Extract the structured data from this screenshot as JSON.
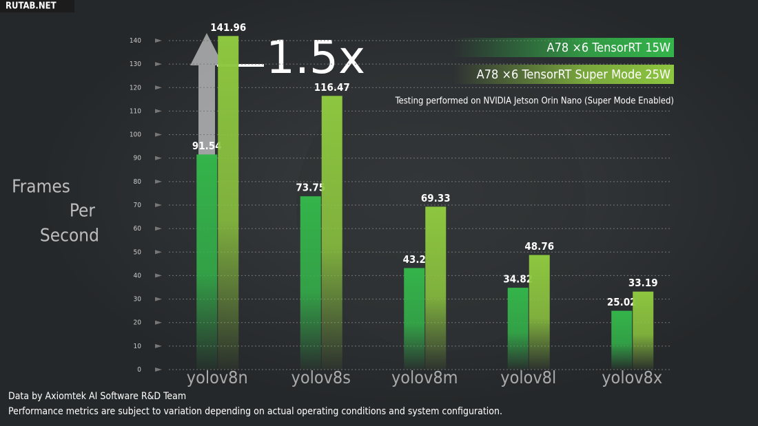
{
  "watermark": "RUTAB.NET",
  "chart_data": {
    "type": "bar",
    "subtitle": "Testing performed on NVIDIA Jetson Orin Nano (Super Mode Enabled)",
    "y_label": [
      "Frames",
      "Per",
      "Second"
    ],
    "annotation": "1.5x",
    "categories": [
      "yolov8n",
      "yolov8s",
      "yolov8m",
      "yolov8l",
      "yolov8x"
    ],
    "series": [
      {
        "name": "A78 ×6 TensorRT 15W",
        "color": "#34b44a",
        "values": [
          91.54,
          73.75,
          43.2,
          34.82,
          25.02
        ]
      },
      {
        "name": "A78 ×6 TensorRT Super Mode 25W",
        "color": "#8dc63f",
        "values": [
          141.96,
          116.47,
          69.33,
          48.76,
          33.19
        ]
      }
    ],
    "ylim": [
      0,
      140
    ],
    "yticks": [
      0,
      10,
      20,
      30,
      40,
      50,
      60,
      70,
      80,
      90,
      100,
      110,
      120,
      130,
      140
    ],
    "grid": true,
    "legend": "top-right"
  },
  "footer": [
    "Data by Axiomtek AI Software R&D Team",
    "Performance metrics are subject to variation depending on actual operating conditions and system configuration."
  ]
}
